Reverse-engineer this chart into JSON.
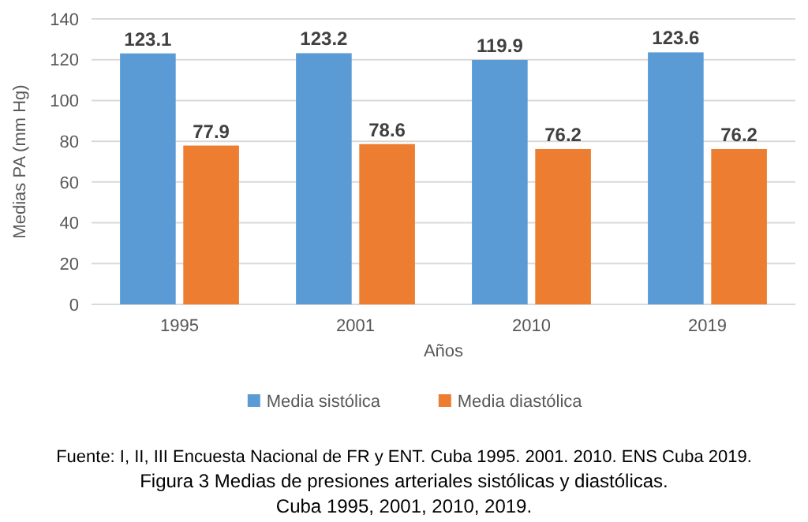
{
  "chart_data": {
    "type": "bar",
    "title": "Figura 3 Medias de presiones arteriales sistólicas y diastólicas.",
    "subtitle": "Cuba 1995, 2001, 2010, 2019.",
    "annotations": [
      "Fuente: I, II, III Encuesta Nacional de FR y ENT. Cuba 1995. 2001. 2010. ENS Cuba 2019."
    ],
    "xlabel": "Años",
    "ylabel": "Medias PA (mm Hg)",
    "categories": [
      "1995",
      "2001",
      "2010",
      "2019"
    ],
    "series": [
      {
        "name": "Media sistólica",
        "color": "#5b9bd5",
        "values": [
          123.1,
          123.2,
          119.9,
          123.6
        ]
      },
      {
        "name": "Media diastólica",
        "color": "#ed7d31",
        "values": [
          77.9,
          78.6,
          76.2,
          76.2
        ]
      }
    ],
    "ylim": [
      0,
      140
    ],
    "yticks": [
      0,
      20,
      40,
      60,
      80,
      100,
      120,
      140
    ],
    "grid": "y",
    "legend": "bottom",
    "data_labels": true
  }
}
